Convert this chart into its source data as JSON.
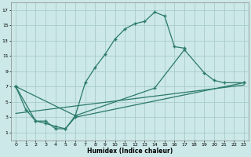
{
  "xlabel": "Humidex (Indice chaleur)",
  "bg_color": "#cce8e8",
  "grid_color": "#aacccc",
  "line_color": "#2a7a6a",
  "xlim": [
    -0.5,
    23.5
  ],
  "ylim": [
    0,
    18
  ],
  "xticks": [
    0,
    1,
    2,
    3,
    4,
    5,
    6,
    7,
    8,
    9,
    10,
    11,
    12,
    13,
    14,
    15,
    16,
    17,
    18,
    19,
    20,
    21,
    22,
    23
  ],
  "yticks": [
    1,
    3,
    5,
    7,
    9,
    11,
    13,
    15,
    17
  ],
  "curve1_x": [
    0,
    1,
    2,
    3,
    4,
    5,
    6,
    7,
    8,
    9,
    10,
    11,
    12,
    13,
    14,
    15,
    16,
    17
  ],
  "curve1_y": [
    7,
    4,
    2.5,
    2.5,
    1.5,
    1.5,
    3.2,
    7.5,
    9.5,
    11.2,
    13.2,
    14.5,
    15.2,
    15.5,
    16.7,
    16.2,
    12.2,
    12.0
  ],
  "curve2_x": [
    0,
    2,
    3,
    4,
    5,
    6,
    23
  ],
  "curve2_y": [
    7,
    2.5,
    2.2,
    1.8,
    1.5,
    3.0,
    7.5
  ],
  "curve3_x": [
    0,
    6,
    14,
    17,
    19,
    20,
    21,
    23
  ],
  "curve3_y": [
    7,
    3.2,
    6.8,
    11.8,
    8.8,
    7.8,
    7.5,
    7.5
  ],
  "curve4_x": [
    0,
    23
  ],
  "curve4_y": [
    3.5,
    7.2
  ]
}
